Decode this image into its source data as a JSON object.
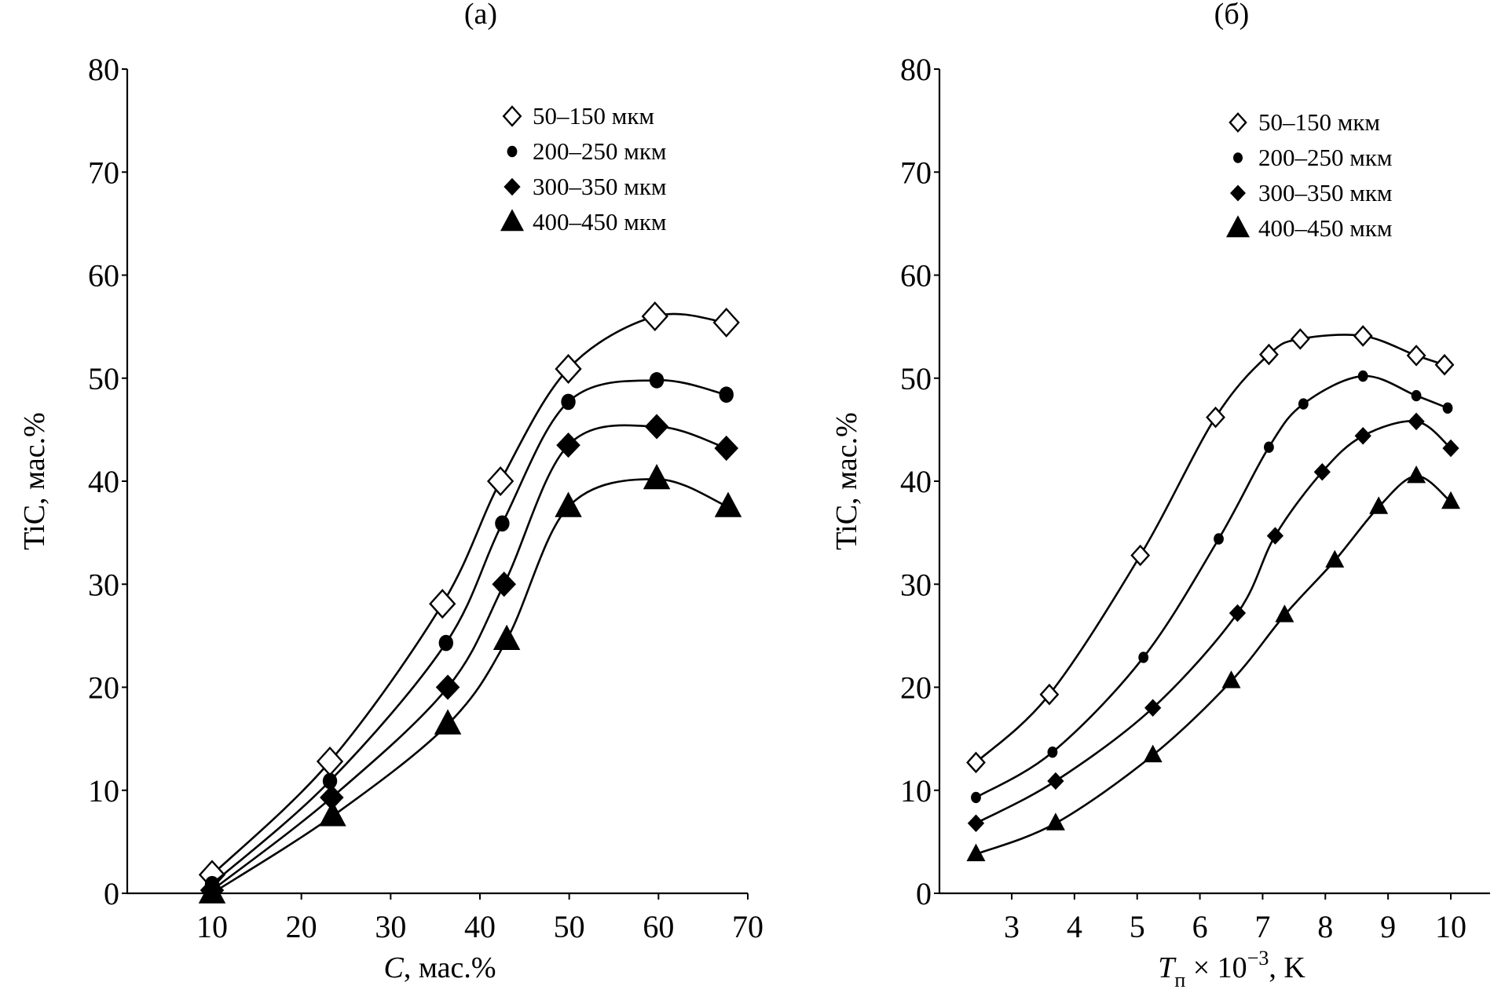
{
  "chart_data": [
    {
      "type": "line",
      "panel_label": "(a)",
      "xlabel_italic": "C",
      "xlabel_rest": ", мас.%",
      "ylabel": "TiC, мас.%",
      "xlim": [
        0,
        70
      ],
      "ylim": [
        0,
        80
      ],
      "xticks": [
        10,
        20,
        30,
        40,
        50,
        60,
        70
      ],
      "yticks": [
        0,
        10,
        20,
        30,
        40,
        50,
        60,
        70,
        80
      ],
      "grid": false,
      "legend_position": "top-right",
      "series": [
        {
          "name": "50–150 мкм",
          "marker": "open-diamond",
          "x": [
            10,
            23.2,
            35.8,
            42.3,
            49.9,
            59.6,
            67.6
          ],
          "y": [
            1.8,
            12.8,
            28.1,
            40.0,
            50.9,
            56.0,
            55.4
          ]
        },
        {
          "name": "200–250 мкм",
          "marker": "filled-circle",
          "x": [
            10,
            23.2,
            36.2,
            42.5,
            49.9,
            59.8,
            67.6
          ],
          "y": [
            0.9,
            10.9,
            24.3,
            35.9,
            47.7,
            49.8,
            48.4
          ]
        },
        {
          "name": "300–350 мкм",
          "marker": "filled-diamond",
          "x": [
            10,
            23.4,
            36.4,
            42.7,
            49.9,
            59.8,
            67.6
          ],
          "y": [
            0.3,
            9.3,
            20.0,
            30.0,
            43.5,
            45.3,
            43.2
          ]
        },
        {
          "name": "400–450 мкм",
          "marker": "filled-triangle",
          "x": [
            10,
            23.5,
            36.4,
            43.0,
            49.9,
            59.8,
            67.8
          ],
          "y": [
            0.0,
            7.5,
            16.4,
            24.6,
            37.5,
            40.2,
            37.5
          ]
        }
      ]
    },
    {
      "type": "line",
      "panel_label": "(б)",
      "xlabel_italic": "T",
      "xlabel_sub": "п",
      "xlabel_rest": " × 10",
      "xlabel_sup": "−3",
      "xlabel_tail": ", K",
      "ylabel": "TiC, мас.%",
      "xlim": [
        1.9,
        10.6
      ],
      "ylim": [
        0,
        80
      ],
      "xticks": [
        3,
        4,
        5,
        6,
        7,
        8,
        9,
        10
      ],
      "yticks": [
        0,
        10,
        20,
        30,
        40,
        50,
        60,
        70,
        80
      ],
      "grid": false,
      "legend_position": "top-right",
      "series": [
        {
          "name": "50–150 мкм",
          "marker": "open-diamond",
          "x": [
            2.43,
            3.6,
            5.05,
            6.25,
            7.1,
            7.6,
            8.6,
            9.45,
            9.9
          ],
          "y": [
            12.7,
            19.3,
            32.8,
            46.2,
            52.3,
            53.8,
            54.1,
            52.2,
            51.3
          ]
        },
        {
          "name": "200–250 мкм",
          "marker": "filled-circle",
          "x": [
            2.43,
            3.65,
            5.1,
            6.3,
            7.1,
            7.65,
            8.6,
            9.45,
            9.95
          ],
          "y": [
            9.3,
            13.7,
            22.9,
            34.4,
            43.3,
            47.5,
            50.2,
            48.3,
            47.1
          ]
        },
        {
          "name": "300–350 мкм",
          "marker": "filled-diamond",
          "x": [
            2.43,
            3.7,
            5.25,
            6.6,
            7.2,
            7.95,
            8.6,
            9.45,
            10.0
          ],
          "y": [
            6.8,
            10.9,
            18.0,
            27.2,
            34.7,
            40.9,
            44.4,
            45.8,
            43.2
          ]
        },
        {
          "name": "400–450 мкм",
          "marker": "filled-triangle",
          "x": [
            2.43,
            3.7,
            5.25,
            6.5,
            7.35,
            8.15,
            8.85,
            9.45,
            10.0
          ],
          "y": [
            3.8,
            6.8,
            13.4,
            20.6,
            27.0,
            32.3,
            37.5,
            40.5,
            38.0
          ]
        }
      ]
    }
  ]
}
